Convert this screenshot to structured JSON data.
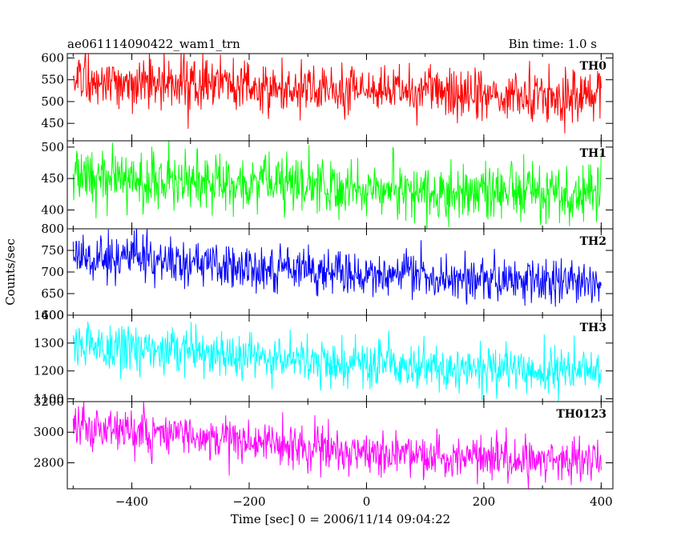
{
  "header": {
    "left": "ae061114090422_wam1_trn",
    "right": "Bin time: 1.0 s"
  },
  "chart_data": {
    "type": "line",
    "xlabel": "Time [sec] 0 = 2006/11/14 09:04:22",
    "ylabel": "Counts/sec",
    "xlim": [
      -510,
      420
    ],
    "xticks": [
      -400,
      -200,
      0,
      200,
      400
    ],
    "x_range": [
      -500,
      400
    ],
    "bin_time_s": 1.0,
    "colors": {
      "TH0": "#ff0000",
      "TH1": "#00ff00",
      "TH2": "#0000ff",
      "TH3": "#00ffff",
      "TH0123": "#ff00ff"
    },
    "panels": [
      {
        "name": "TH0",
        "ylim": [
          410,
          610
        ],
        "yticks": [
          450,
          500,
          550,
          600
        ],
        "trend": [
          [
            -500,
            550
          ],
          [
            -300,
            545
          ],
          [
            -100,
            528
          ],
          [
            100,
            520
          ],
          [
            400,
            510
          ]
        ],
        "noise_sd": 30
      },
      {
        "name": "TH1",
        "ylim": [
          370,
          510
        ],
        "yticks": [
          400,
          450,
          500
        ],
        "trend": [
          [
            -500,
            455
          ],
          [
            -300,
            447
          ],
          [
            -100,
            438
          ],
          [
            100,
            430
          ],
          [
            400,
            427
          ]
        ],
        "noise_sd": 22
      },
      {
        "name": "TH2",
        "ylim": [
          600,
          800
        ],
        "yticks": [
          600,
          650,
          700,
          750,
          800
        ],
        "trend": [
          [
            -500,
            735
          ],
          [
            -300,
            722
          ],
          [
            -100,
            705
          ],
          [
            100,
            690
          ],
          [
            400,
            672
          ]
        ],
        "noise_sd": 26
      },
      {
        "name": "TH3",
        "ylim": [
          1090,
          1400
        ],
        "yticks": [
          1100,
          1200,
          1300,
          1400
        ],
        "trend": [
          [
            -500,
            1290
          ],
          [
            -300,
            1265
          ],
          [
            -100,
            1235
          ],
          [
            100,
            1210
          ],
          [
            400,
            1200
          ]
        ],
        "noise_sd": 42
      },
      {
        "name": "TH0123",
        "ylim": [
          2630,
          3200
        ],
        "yticks": [
          2800,
          3000,
          3200
        ],
        "trend": [
          [
            -500,
            3030
          ],
          [
            -300,
            2975
          ],
          [
            -100,
            2900
          ],
          [
            100,
            2840
          ],
          [
            400,
            2810
          ]
        ],
        "noise_sd": 70
      }
    ]
  }
}
